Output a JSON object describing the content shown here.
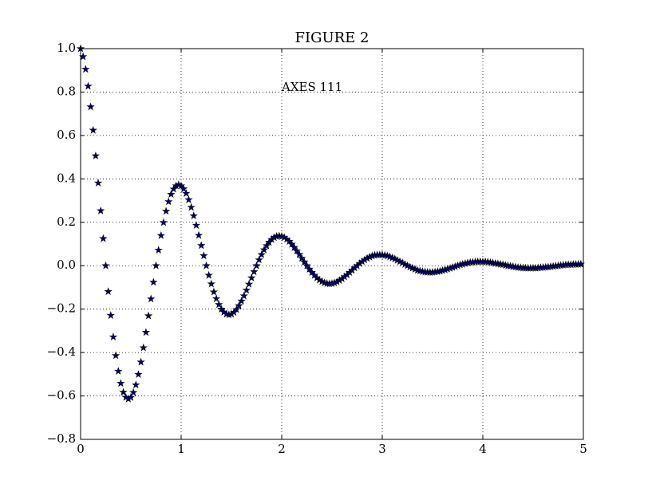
{
  "chart_data": {
    "type": "scatter",
    "title": "FIGURE 2",
    "annotation": "AXES 111",
    "x": [
      0,
      0.025,
      0.05,
      0.075,
      0.1,
      0.125,
      0.15,
      0.175,
      0.2,
      0.225,
      0.25,
      0.275,
      0.3,
      0.325,
      0.35,
      0.375,
      0.4,
      0.425,
      0.45,
      0.475,
      0.5,
      0.525,
      0.55,
      0.575,
      0.6,
      0.625,
      0.65,
      0.675,
      0.7,
      0.725,
      0.75,
      0.775,
      0.8,
      0.825,
      0.85,
      0.875,
      0.9,
      0.925,
      0.95,
      0.975,
      1,
      1.025,
      1.05,
      1.075,
      1.1,
      1.125,
      1.15,
      1.175,
      1.2,
      1.225,
      1.25,
      1.275,
      1.3,
      1.325,
      1.35,
      1.375,
      1.4,
      1.425,
      1.45,
      1.475,
      1.5,
      1.525,
      1.55,
      1.575,
      1.6,
      1.625,
      1.65,
      1.675,
      1.7,
      1.725,
      1.75,
      1.775,
      1.8,
      1.825,
      1.85,
      1.875,
      1.9,
      1.925,
      1.95,
      1.975,
      2,
      2.025,
      2.05,
      2.075,
      2.1,
      2.125,
      2.15,
      2.175,
      2.2,
      2.225,
      2.25,
      2.275,
      2.3,
      2.325,
      2.35,
      2.375,
      2.4,
      2.425,
      2.45,
      2.475,
      2.5,
      2.525,
      2.55,
      2.575,
      2.6,
      2.625,
      2.65,
      2.675,
      2.7,
      2.725,
      2.75,
      2.775,
      2.8,
      2.825,
      2.85,
      2.875,
      2.9,
      2.925,
      2.95,
      2.975,
      3,
      3.025,
      3.05,
      3.075,
      3.1,
      3.125,
      3.15,
      3.175,
      3.2,
      3.225,
      3.25,
      3.275,
      3.3,
      3.325,
      3.35,
      3.375,
      3.4,
      3.425,
      3.45,
      3.475,
      3.5,
      3.525,
      3.55,
      3.575,
      3.6,
      3.625,
      3.65,
      3.675,
      3.7,
      3.725,
      3.75,
      3.775,
      3.8,
      3.825,
      3.85,
      3.875,
      3.9,
      3.925,
      3.95,
      3.975,
      4,
      4.025,
      4.05,
      4.075,
      4.1,
      4.125,
      4.15,
      4.175,
      4.2,
      4.225,
      4.25,
      4.275,
      4.3,
      4.325,
      4.35,
      4.375,
      4.4,
      4.425,
      4.45,
      4.475,
      4.5,
      4.525,
      4.55,
      4.575,
      4.6,
      4.625,
      4.65,
      4.675,
      4.7,
      4.725,
      4.75,
      4.775,
      4.8,
      4.825,
      4.85,
      4.875,
      4.9,
      4.925,
      4.95,
      4.975
    ],
    "values": [
      1,
      0.963,
      0.905,
      0.827,
      0.732,
      0.624,
      0.506,
      0.381,
      0.253,
      0.125,
      0,
      -0.119,
      -0.229,
      -0.328,
      -0.414,
      -0.486,
      -0.542,
      -0.583,
      -0.606,
      -0.614,
      -0.607,
      -0.584,
      -0.549,
      -0.501,
      -0.444,
      -0.378,
      -0.307,
      -0.231,
      -0.153,
      -0.076,
      0,
      0.072,
      0.139,
      0.199,
      0.251,
      0.295,
      0.329,
      0.353,
      0.368,
      0.373,
      0.368,
      0.354,
      0.333,
      0.304,
      0.269,
      0.23,
      0.186,
      0.14,
      0.093,
      0.046,
      0,
      -0.044,
      -0.084,
      -0.121,
      -0.152,
      -0.179,
      -0.2,
      -0.214,
      -0.223,
      -0.226,
      -0.223,
      -0.215,
      -0.202,
      -0.184,
      -0.163,
      -0.139,
      -0.113,
      -0.085,
      -0.056,
      -0.028,
      0,
      0.027,
      0.051,
      0.073,
      0.092,
      0.108,
      0.121,
      0.13,
      0.135,
      0.137,
      0.135,
      0.13,
      0.122,
      0.112,
      0.099,
      0.084,
      0.068,
      0.052,
      0.034,
      0.017,
      0,
      -0.016,
      -0.031,
      -0.044,
      -0.056,
      -0.066,
      -0.073,
      -0.079,
      -0.082,
      -0.083,
      -0.082,
      -0.079,
      -0.074,
      -0.068,
      -0.06,
      -0.051,
      -0.042,
      -0.031,
      -0.021,
      -0.01,
      0,
      0.01,
      0.019,
      0.027,
      0.034,
      0.04,
      0.045,
      0.048,
      0.05,
      0.05,
      0.05,
      0.048,
      0.045,
      0.041,
      0.036,
      0.031,
      0.025,
      0.019,
      0.013,
      0.006,
      0,
      -0.006,
      -0.011,
      -0.016,
      -0.021,
      -0.024,
      -0.027,
      -0.029,
      -0.03,
      -0.031,
      -0.03,
      -0.029,
      -0.027,
      -0.025,
      -0.022,
      -0.019,
      -0.015,
      -0.012,
      -0.008,
      -0.004,
      0,
      0.004,
      0.007,
      0.01,
      0.013,
      0.015,
      0.016,
      0.018,
      0.018,
      0.019,
      0.018,
      0.018,
      0.017,
      0.015,
      0.013,
      0.011,
      0.009,
      0.007,
      0.005,
      0.002,
      0,
      -0.002,
      -0.004,
      -0.006,
      -0.008,
      -0.009,
      -0.01,
      -0.011,
      -0.011,
      -0.011,
      -0.011,
      -0.011,
      -0.01,
      -0.009,
      -0.008,
      -0.007,
      -0.006,
      -0.004,
      -0.003,
      -0.001,
      0,
      0.001,
      0.003,
      0.004,
      0.005,
      0.005,
      0.006,
      0.006,
      0.007,
      0.007
    ],
    "color": "#000080",
    "xlim": [
      0,
      5
    ],
    "xticks": [
      0,
      1,
      2,
      3,
      4,
      5
    ],
    "ylim": [
      -0.8,
      1.0
    ],
    "yticks": [
      {
        "value": -0.8,
        "label": "−0.8"
      },
      {
        "value": -0.6,
        "label": "−0.6"
      },
      {
        "value": -0.4,
        "label": "−0.4"
      },
      {
        "value": -0.2,
        "label": "−0.2"
      },
      {
        "value": 0,
        "label": "0.0"
      },
      {
        "value": 0.2,
        "label": "0.2"
      },
      {
        "value": 0.4,
        "label": "0.4"
      },
      {
        "value": 0.6,
        "label": "0.6"
      },
      {
        "value": 0.8,
        "label": "0.8"
      },
      {
        "value": 1.0,
        "label": "1.0"
      }
    ],
    "grid": true
  }
}
